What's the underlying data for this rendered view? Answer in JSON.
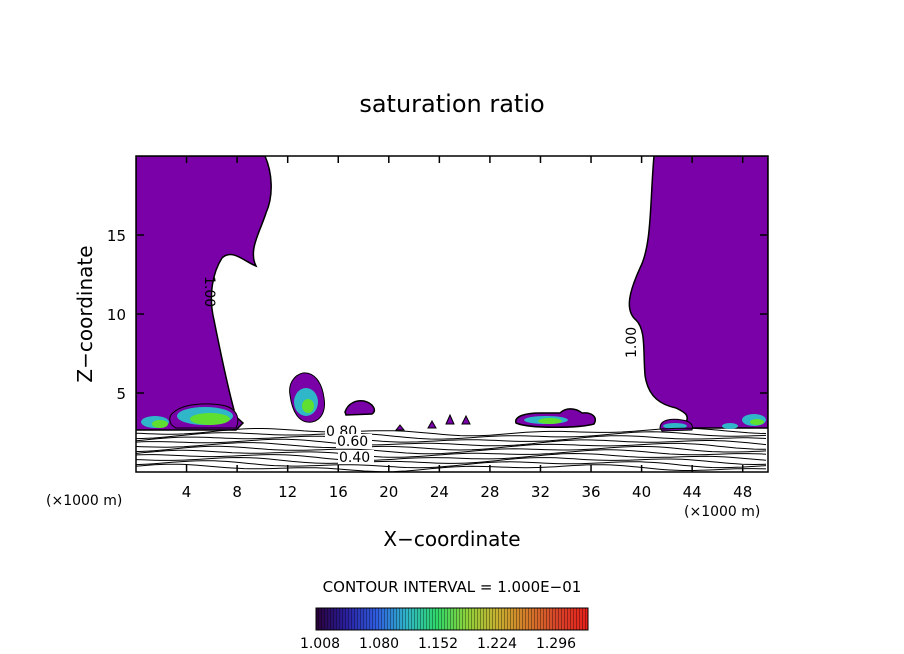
{
  "chart_data": {
    "type": "contour",
    "title": "saturation ratio",
    "xlabel": "X−coordinate",
    "ylabel": "Z−coordinate",
    "x_unit_label": "(×1000 m)",
    "xlim": [
      0,
      50
    ],
    "ylim": [
      0,
      20
    ],
    "x_ticks": [
      4,
      8,
      12,
      16,
      20,
      24,
      28,
      32,
      36,
      40,
      44,
      48
    ],
    "y_ticks": [
      5,
      10,
      15
    ],
    "contour_interval_label": "CONTOUR INTERVAL = 1.000E−01",
    "contour_labels": [
      "1.00",
      "1.00",
      "0.80",
      "0.60",
      "0.40"
    ],
    "colorbar": {
      "tick_labels": [
        "1.008",
        "1.080",
        "1.152",
        "1.224",
        "1.296"
      ],
      "colors": [
        "#2a0038",
        "#2a1fa0",
        "#2f5de0",
        "#2fb6c8",
        "#2fd86a",
        "#8fd23a",
        "#c8b030",
        "#d47a2a",
        "#d8432a",
        "#e8201a"
      ]
    },
    "supersaturated_fill_color": "#7a00a8",
    "grid": false
  }
}
